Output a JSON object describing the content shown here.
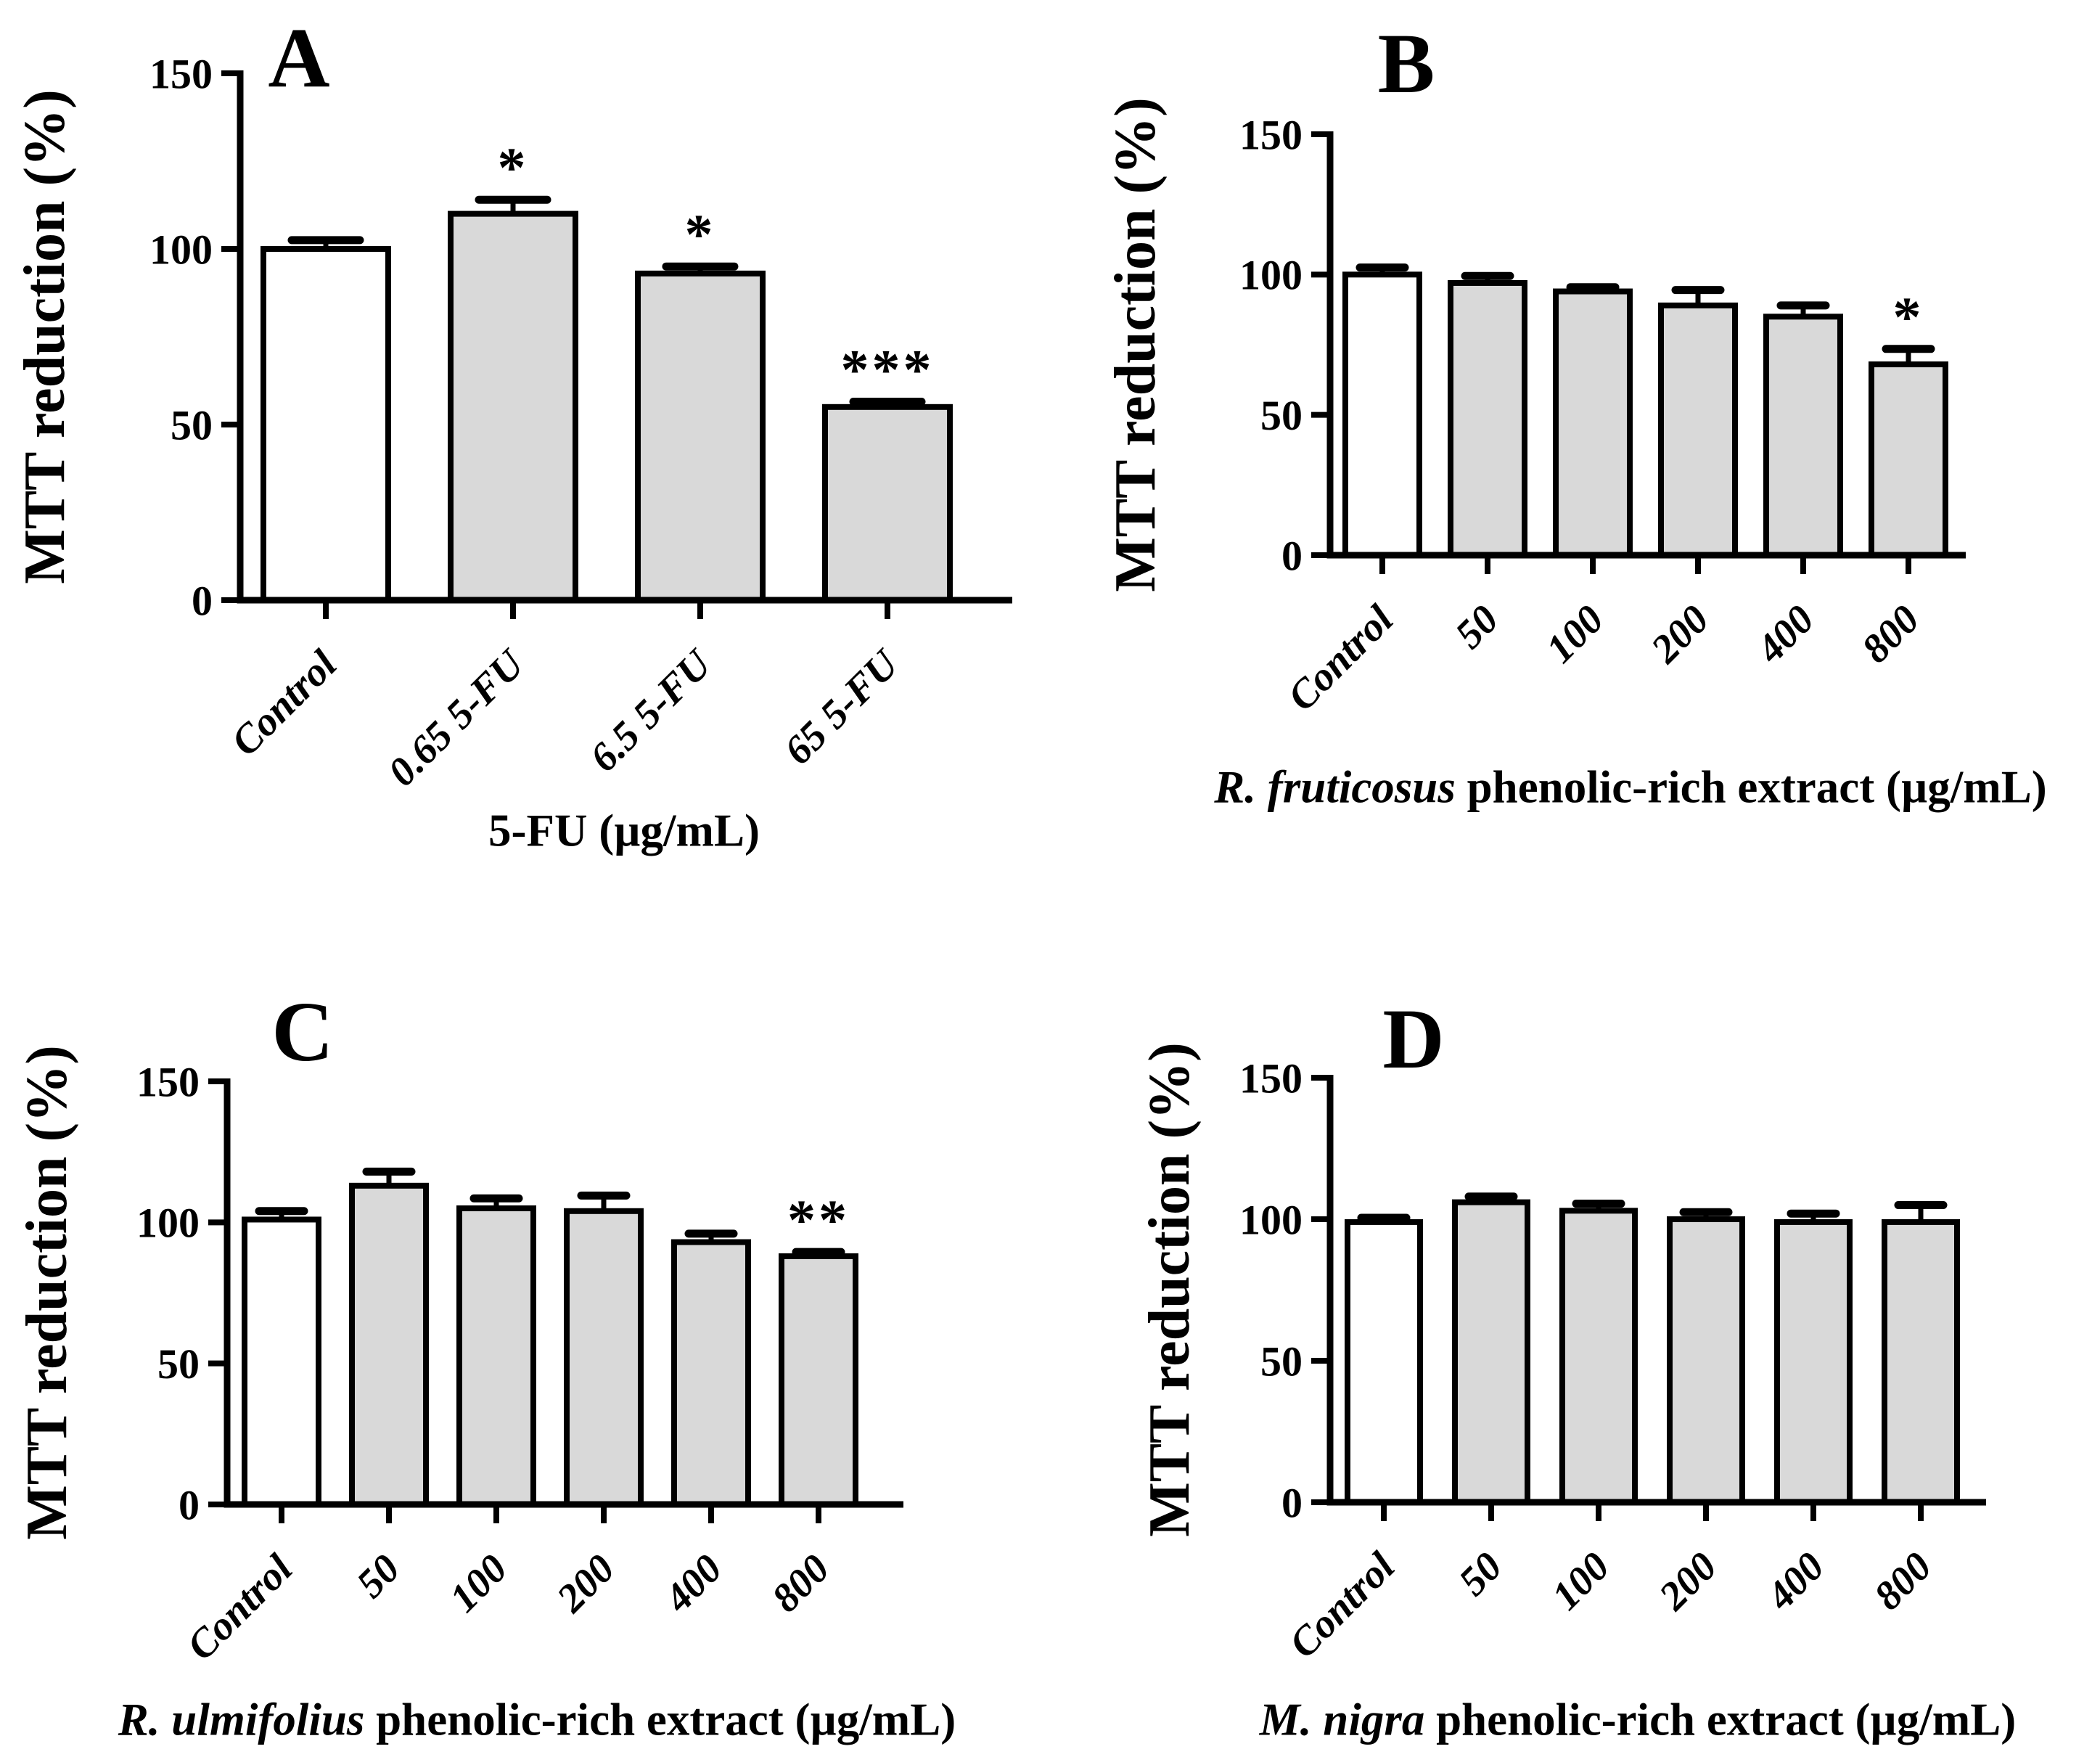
{
  "style": {
    "background": "#ffffff",
    "axis_color": "#000000",
    "text_color": "#000000",
    "control_fill": "#ffffff",
    "treatment_fill": "#d9d9d9"
  },
  "chart_data": [
    {
      "type": "bar",
      "panel": "A",
      "ylabel": "MTT reduction (%)",
      "ylim": [
        0,
        150
      ],
      "yticks": [
        0,
        50,
        100,
        150
      ],
      "xlabel_italic": "",
      "xlabel": "5-FU (µg/mL)",
      "categories": [
        "Control",
        "0.65 5-FU",
        "6.5 5-FU",
        "65 5-FU"
      ],
      "values": [
        100,
        110,
        93,
        55
      ],
      "errors": [
        2.5,
        4,
        2,
        1.5
      ],
      "significance": [
        "",
        "*",
        "*",
        "***"
      ],
      "bar_fills": [
        "#ffffff",
        "#d9d9d9",
        "#d9d9d9",
        "#d9d9d9"
      ],
      "grid": false,
      "legend": null
    },
    {
      "type": "bar",
      "panel": "B",
      "ylabel": "MTT reduction (%)",
      "ylim": [
        0,
        150
      ],
      "yticks": [
        0,
        50,
        100,
        150
      ],
      "xlabel_italic": "R. fruticosus",
      "xlabel": " phenolic-rich extract (µg/mL)",
      "categories": [
        "Control",
        "50",
        "100",
        "200",
        "400",
        "800"
      ],
      "values": [
        100,
        97,
        94,
        89,
        85,
        68
      ],
      "errors": [
        2.5,
        2.5,
        1.5,
        5.5,
        4,
        5.5
      ],
      "significance": [
        "",
        "",
        "",
        "",
        "",
        "*"
      ],
      "bar_fills": [
        "#ffffff",
        "#d9d9d9",
        "#d9d9d9",
        "#d9d9d9",
        "#d9d9d9",
        "#d9d9d9"
      ],
      "grid": false,
      "legend": null
    },
    {
      "type": "bar",
      "panel": "C",
      "ylabel": "MTT reduction (%)",
      "ylim": [
        0,
        150
      ],
      "yticks": [
        0,
        50,
        100,
        150
      ],
      "xlabel_italic": "R. ulmifolius",
      "xlabel": " phenolic-rich extract (µg/mL)",
      "categories": [
        "Control",
        "50",
        "100",
        "200",
        "400",
        "800"
      ],
      "values": [
        101,
        113,
        105,
        104,
        93,
        88
      ],
      "errors": [
        3,
        5,
        3.5,
        5.5,
        3,
        1.5
      ],
      "significance": [
        "",
        "",
        "",
        "",
        "",
        "**"
      ],
      "bar_fills": [
        "#ffffff",
        "#d9d9d9",
        "#d9d9d9",
        "#d9d9d9",
        "#d9d9d9",
        "#d9d9d9"
      ],
      "grid": false,
      "legend": null
    },
    {
      "type": "bar",
      "panel": "D",
      "ylabel": "MTT reduction (%)",
      "ylim": [
        0,
        150
      ],
      "yticks": [
        0,
        50,
        100,
        150
      ],
      "xlabel_italic": "M. nigra",
      "xlabel": " phenolic-rich extract (µg/mL)",
      "categories": [
        "Control",
        "50",
        "100",
        "200",
        "400",
        "800"
      ],
      "values": [
        99,
        106,
        103,
        100,
        99,
        99
      ],
      "errors": [
        1.5,
        2,
        2.5,
        2.5,
        3,
        6
      ],
      "significance": [
        "",
        "",
        "",
        "",
        "",
        ""
      ],
      "bar_fills": [
        "#ffffff",
        "#d9d9d9",
        "#d9d9d9",
        "#d9d9d9",
        "#d9d9d9",
        "#d9d9d9"
      ],
      "grid": false,
      "legend": null
    }
  ]
}
